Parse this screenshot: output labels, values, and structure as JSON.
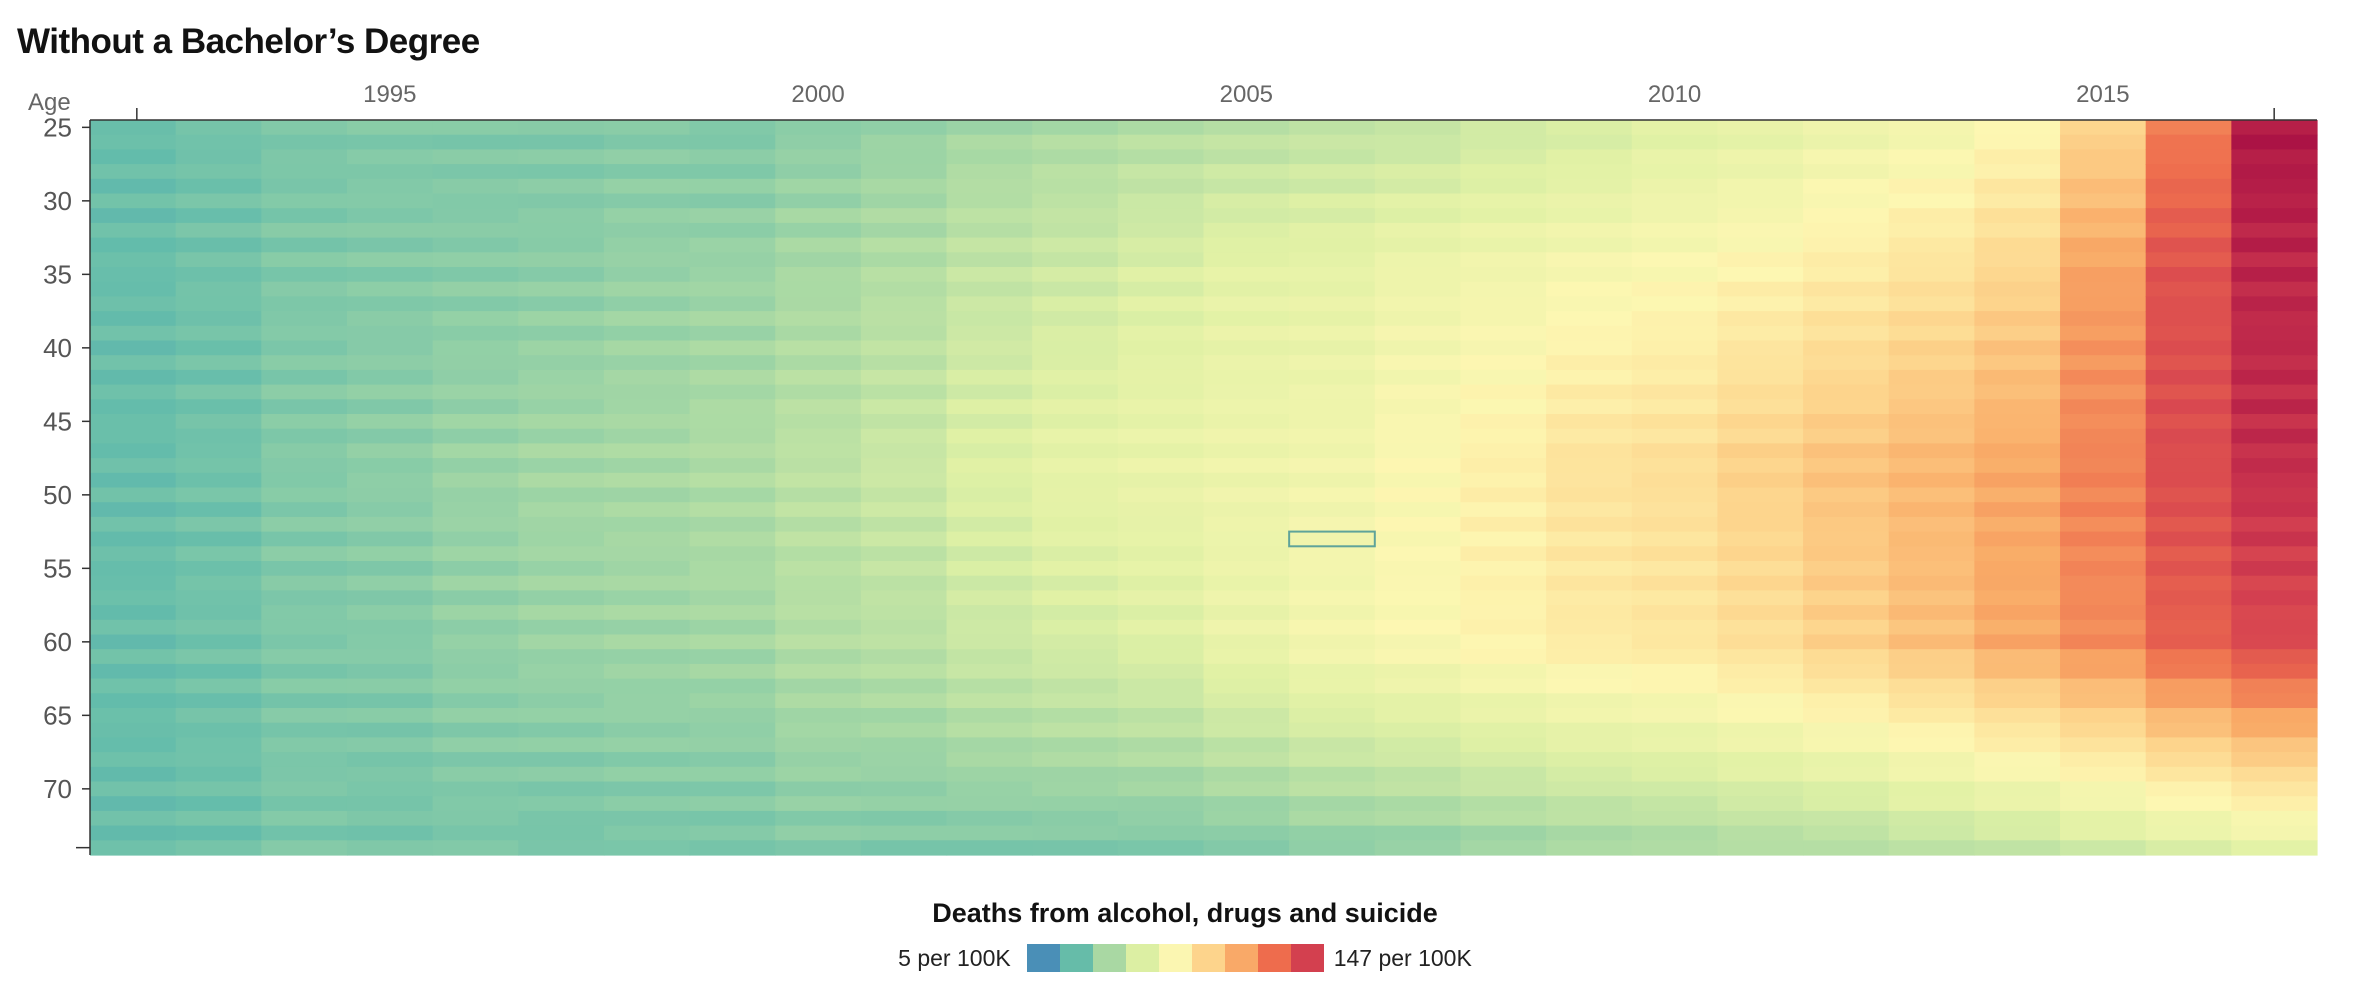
{
  "title": "Without a Bachelor’s Degree",
  "chart_data": {
    "type": "heatmap",
    "title": "Without a Bachelor’s Degree",
    "ylabel": "Age",
    "xlabel": "",
    "x_start": 1992,
    "x_end": 2017,
    "x_ticks": [
      "1995",
      "2000",
      "2005",
      "2010",
      "2015"
    ],
    "x_tick_values": [
      1995,
      2000,
      2005,
      2010,
      2015
    ],
    "y_start": 25,
    "y_end": 74,
    "y_ticks": [
      "25",
      "30",
      "35",
      "40",
      "45",
      "50",
      "55",
      "60",
      "65",
      "70"
    ],
    "y_tick_values": [
      25,
      30,
      35,
      40,
      45,
      50,
      55,
      60,
      65,
      70
    ],
    "value_unit": "deaths per 100K",
    "value_min": 5,
    "value_max": 147,
    "highlighted_cell": {
      "year": 2006,
      "age": 53
    },
    "column_profiles": [
      [
        22,
        22,
        22,
        22,
        22
      ],
      [
        24,
        24,
        24,
        24,
        23
      ],
      [
        26,
        27,
        28,
        27,
        26
      ],
      [
        27,
        28,
        30,
        28,
        25
      ],
      [
        27,
        29,
        33,
        31,
        26
      ],
      [
        27,
        30,
        35,
        33,
        25
      ],
      [
        28,
        32,
        36,
        34,
        26
      ],
      [
        27,
        33,
        38,
        35,
        26
      ],
      [
        30,
        36,
        42,
        39,
        28
      ],
      [
        32,
        39,
        46,
        41,
        27
      ],
      [
        35,
        44,
        52,
        46,
        27
      ],
      [
        37,
        47,
        56,
        49,
        27
      ],
      [
        39,
        51,
        58,
        52,
        27
      ],
      [
        41,
        55,
        60,
        58,
        28
      ],
      [
        43,
        56,
        62,
        63,
        30
      ],
      [
        44,
        60,
        67,
        66,
        31
      ],
      [
        47,
        62,
        72,
        70,
        33
      ],
      [
        49,
        65,
        78,
        74,
        35
      ],
      [
        53,
        67,
        80,
        76,
        36
      ],
      [
        55,
        70,
        86,
        80,
        38
      ],
      [
        59,
        74,
        91,
        86,
        39
      ],
      [
        62,
        78,
        95,
        92,
        42
      ],
      [
        68,
        84,
        100,
        100,
        44
      ],
      [
        85,
        102,
        110,
        108,
        48
      ],
      [
        112,
        125,
        127,
        120,
        52
      ],
      [
        142,
        138,
        136,
        128,
        56
      ]
    ]
  },
  "legend": {
    "title": "Deaths from alcohol, drugs and suicide",
    "min_label": "5 per 100K",
    "max_label": "147 per 100K",
    "colors": [
      "#4a8fb7",
      "#66bca9",
      "#a9d8a3",
      "#dcefa3",
      "#fbf6b1",
      "#fdd48c",
      "#f9a968",
      "#ee6c4d",
      "#d3404f"
    ]
  }
}
